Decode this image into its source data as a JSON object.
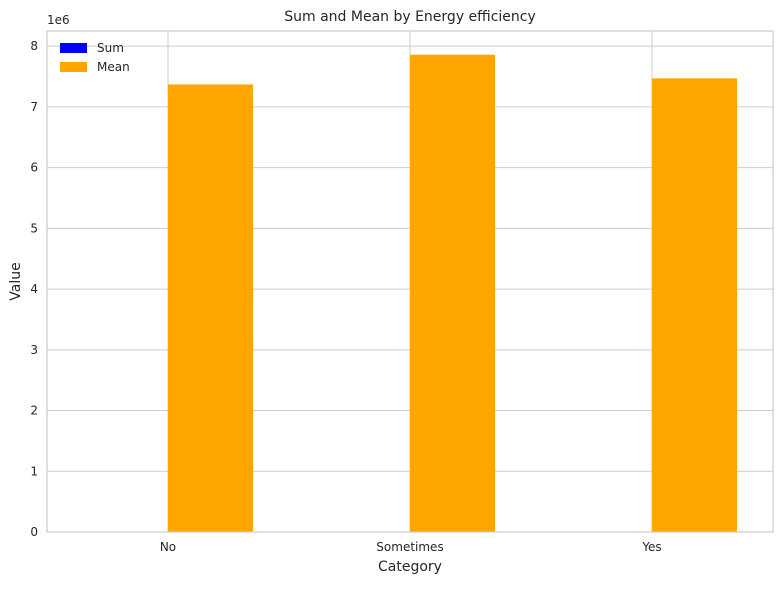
{
  "chart_data": {
    "type": "bar",
    "title": "Sum and Mean by Energy efficiency",
    "xlabel": "Category",
    "ylabel": "Value",
    "y_offset_label": "1e6",
    "categories": [
      "No",
      "Sometimes",
      "Yes"
    ],
    "series": [
      {
        "name": "Sum",
        "color": "#0000ff",
        "values": [
          0,
          0,
          0
        ]
      },
      {
        "name": "Mean",
        "color": "#ffa500",
        "values": [
          7370000,
          7860000,
          7470000
        ]
      }
    ],
    "ylim": [
      0,
      8250000
    ],
    "yticks": [
      0,
      1000000,
      2000000,
      3000000,
      4000000,
      5000000,
      6000000,
      7000000,
      8000000
    ],
    "ytick_labels": [
      "0",
      "1",
      "2",
      "3",
      "4",
      "5",
      "6",
      "7",
      "8"
    ],
    "grid": true,
    "legend_position": "top-left"
  }
}
